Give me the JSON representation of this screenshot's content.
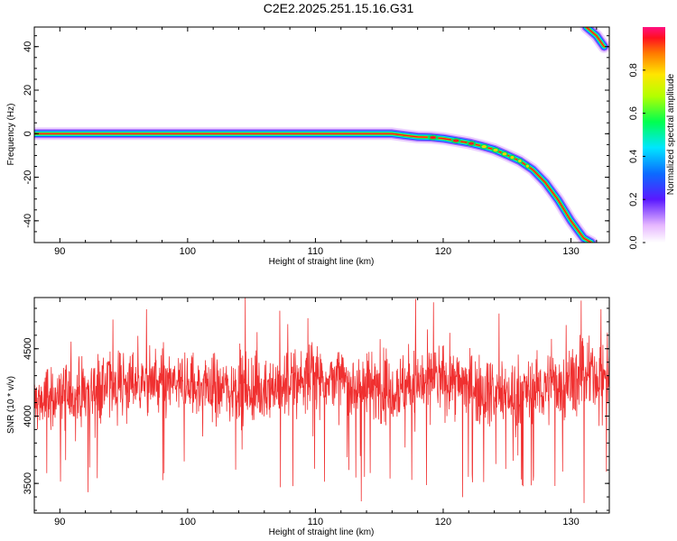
{
  "title": "C2E2.2025.251.15.16.G31",
  "chart_data": [
    {
      "type": "heatmap",
      "xlabel": "Height of straight line (km)",
      "ylabel": "Frequency (Hz)",
      "xlim": [
        88,
        133
      ],
      "ylim": [
        -50,
        49
      ],
      "x_ticks": [
        90,
        100,
        110,
        120,
        130
      ],
      "y_ticks": [
        40,
        20,
        0,
        -20,
        -40
      ],
      "ridge": {
        "x": [
          88,
          90,
          95,
          100,
          105,
          110,
          115,
          116,
          117,
          118,
          119,
          120,
          121,
          122,
          123,
          124,
          125,
          126,
          127,
          128,
          129,
          130,
          131,
          131.6
        ],
        "y": [
          0,
          0,
          0,
          0,
          0,
          0,
          0,
          0,
          -0.8,
          -1.5,
          -1.6,
          -2.2,
          -3.2,
          -4.2,
          -5.6,
          -7.3,
          -9.8,
          -12.5,
          -16.5,
          -22.5,
          -30.5,
          -40,
          -48,
          -50
        ]
      },
      "ridge2": {
        "x": [
          131.2,
          132,
          132.6
        ],
        "y": [
          49,
          45,
          40
        ]
      },
      "colorbar": {
        "label": "Normalized spectral amplitude",
        "range": [
          0,
          1
        ],
        "ticks": [
          "0.0",
          "0.2",
          "0.4",
          "0.6",
          "0.8"
        ]
      }
    },
    {
      "type": "line",
      "xlabel": "Height of straight line (km)",
      "ylabel": "SNR (10 * v/v)",
      "xlim": [
        88,
        133
      ],
      "ylim": [
        3280,
        4880
      ],
      "x_ticks": [
        90,
        100,
        110,
        120,
        130
      ],
      "y_ticks": [
        3500,
        4000,
        4500
      ],
      "color": "#f03030",
      "series": [
        {
          "x_start": 88,
          "x_end": 133,
          "points": 1800,
          "mean": 4200,
          "spread": 170,
          "trend": [
            [
              88,
              4100
            ],
            [
              95,
              4260
            ],
            [
              101,
              4220
            ],
            [
              106,
              4200
            ],
            [
              110,
              4300
            ],
            [
              115,
              4200
            ],
            [
              120,
              4280
            ],
            [
              125,
              4160
            ],
            [
              129,
              4230
            ],
            [
              133,
              4330
            ]
          ],
          "min": 3290,
          "max": 4880
        }
      ]
    }
  ]
}
